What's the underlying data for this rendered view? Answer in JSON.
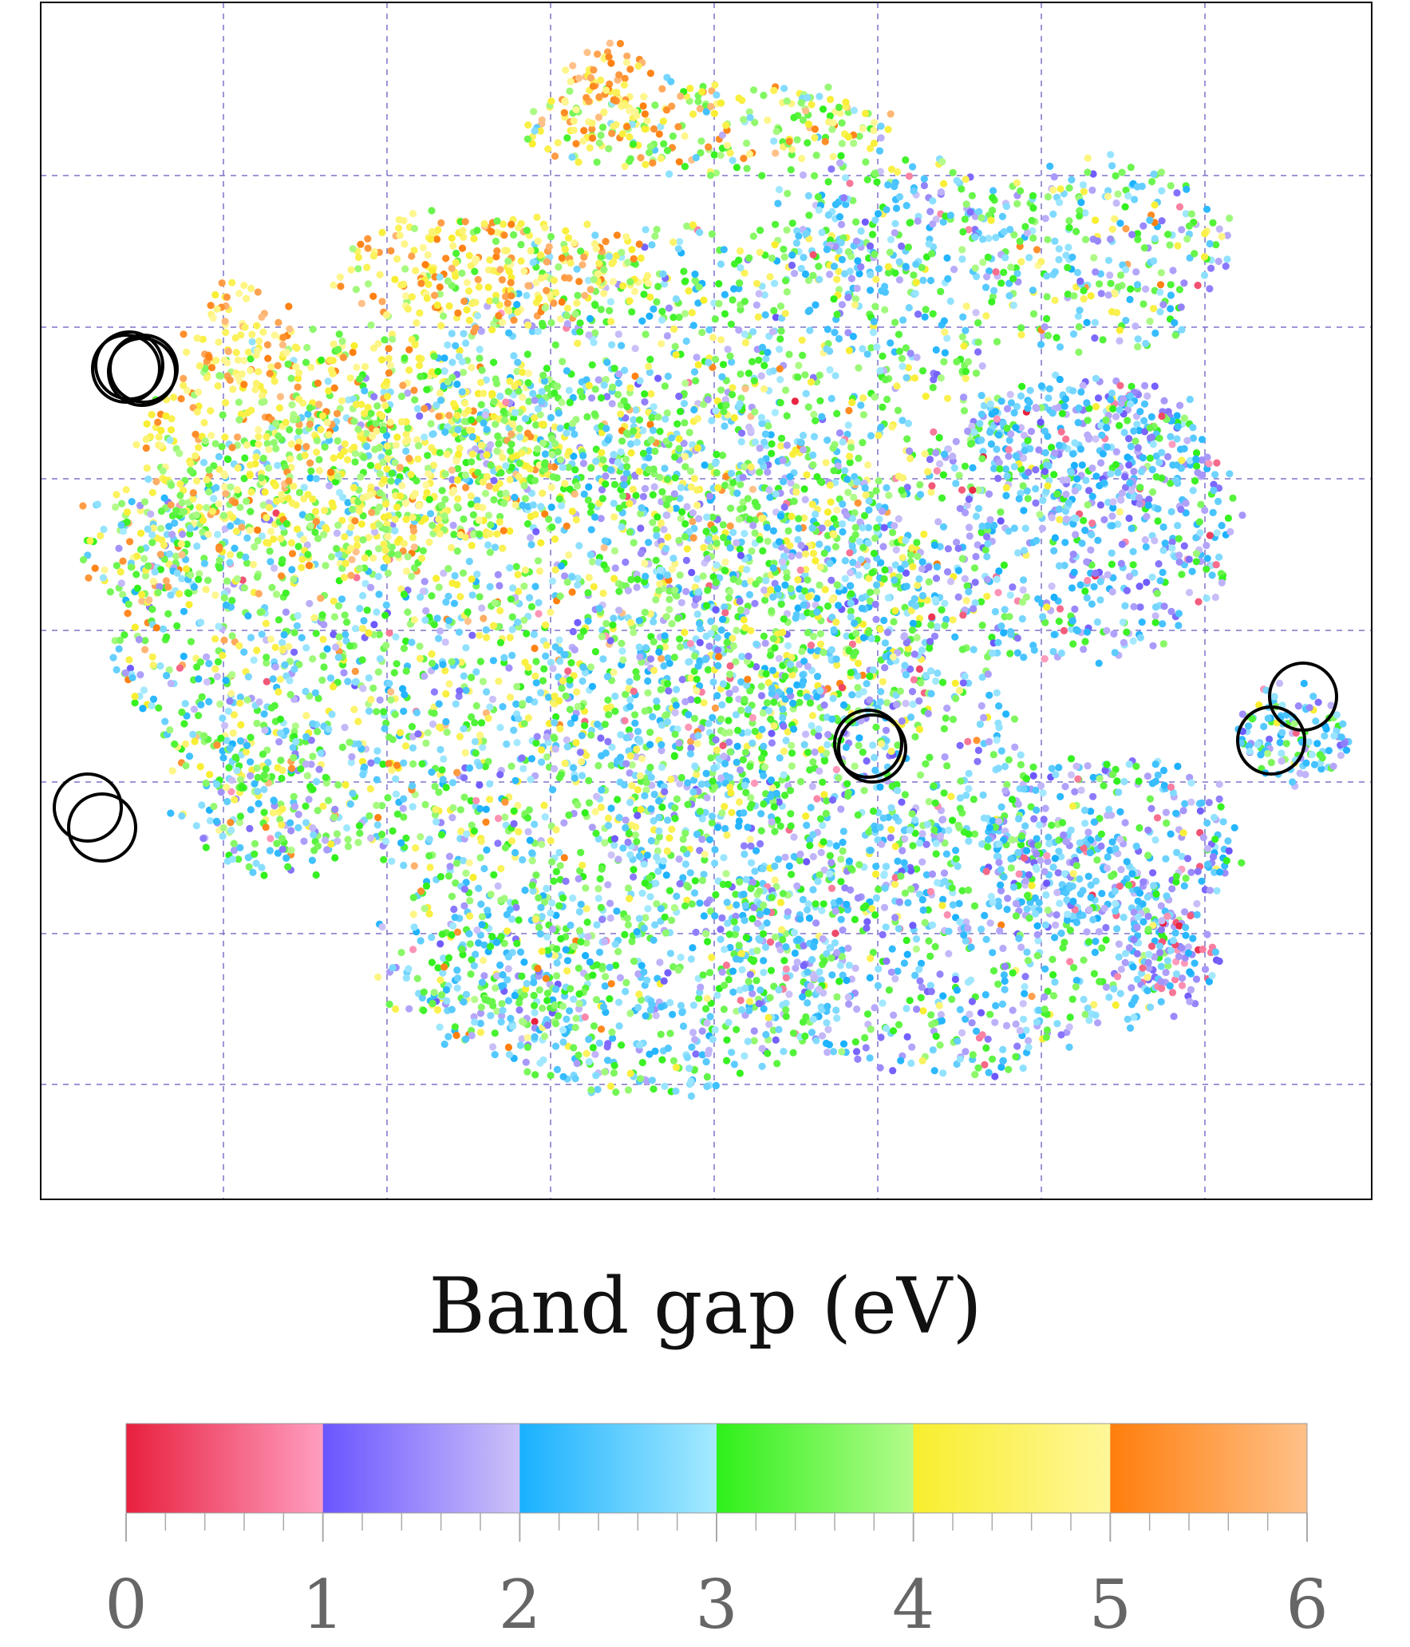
{
  "chart_data": {
    "type": "scatter",
    "grid": true,
    "grid_style": "dashed",
    "grid_color": "#7b74c8",
    "x_gridlines": 7,
    "y_gridlines": 6,
    "colorbar": {
      "title": "Band gap (eV)",
      "range": [
        0,
        6
      ],
      "tick_labels": [
        "0",
        "1",
        "2",
        "3",
        "4",
        "5",
        "6"
      ],
      "minor_ticks_per_unit": 5,
      "bins": [
        {
          "from": 0,
          "to": 1,
          "start_color": "#e8203e",
          "end_color": "#ff9ec0"
        },
        {
          "from": 1,
          "to": 2,
          "start_color": "#6a55ff",
          "end_color": "#cdc2f8"
        },
        {
          "from": 2,
          "to": 3,
          "start_color": "#19b0ff",
          "end_color": "#a6eaff"
        },
        {
          "from": 3,
          "to": 4,
          "start_color": "#2ef01a",
          "end_color": "#b4fb8c"
        },
        {
          "from": 4,
          "to": 5,
          "start_color": "#f8ee2e",
          "end_color": "#fff79a"
        },
        {
          "from": 5,
          "to": 6,
          "start_color": "#ff7e0c",
          "end_color": "#ffc189"
        }
      ]
    },
    "highlighted_pairs": 5,
    "marker_colors": {
      "ring": "#000000"
    }
  }
}
